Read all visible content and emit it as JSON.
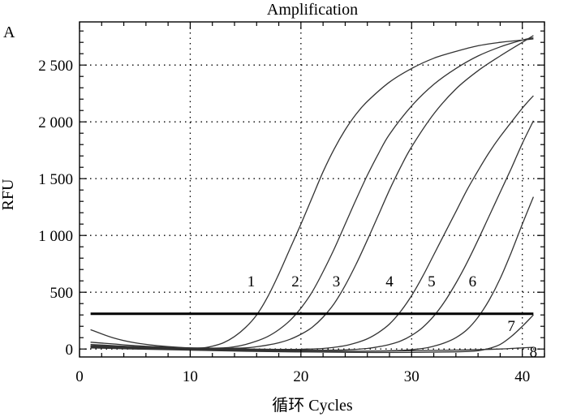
{
  "chart_data": {
    "type": "line",
    "title": "Amplification",
    "panel_label": "A",
    "xlabel": "循环  Cycles",
    "ylabel": "RFU",
    "xlim": [
      0,
      42
    ],
    "ylim": [
      -70,
      2880
    ],
    "x_ticks": [
      0,
      10,
      20,
      30,
      40
    ],
    "x_tick_labels": [
      "0",
      "10",
      "20",
      "30",
      "40"
    ],
    "y_ticks": [
      0,
      500,
      1000,
      1500,
      2000,
      2500
    ],
    "y_tick_labels": [
      "0",
      "500",
      "1 000",
      "1 500",
      "2 000",
      "2 500"
    ],
    "grid": true,
    "threshold": 310,
    "series": [
      {
        "name": "1",
        "x": [
          1,
          3,
          5,
          7,
          9,
          11,
          12,
          13,
          14,
          15,
          16,
          17,
          18,
          19,
          20,
          21,
          22,
          23,
          24,
          25,
          26,
          28,
          30,
          32,
          34,
          36,
          38,
          40,
          41
        ],
        "y": [
          170,
          100,
          55,
          30,
          15,
          10,
          25,
          55,
          110,
          190,
          300,
          460,
          660,
          880,
          1100,
          1330,
          1560,
          1760,
          1930,
          2070,
          2180,
          2350,
          2470,
          2560,
          2620,
          2670,
          2700,
          2720,
          2730
        ]
      },
      {
        "name": "2",
        "x": [
          1,
          3,
          5,
          7,
          9,
          11,
          13,
          14,
          15,
          16,
          17,
          18,
          19,
          20,
          21,
          22,
          23,
          24,
          25,
          26,
          27,
          28,
          30,
          32,
          34,
          36,
          38,
          40,
          41
        ],
        "y": [
          60,
          45,
          30,
          20,
          12,
          8,
          10,
          20,
          40,
          70,
          110,
          170,
          250,
          360,
          500,
          680,
          880,
          1100,
          1320,
          1530,
          1720,
          1890,
          2140,
          2330,
          2470,
          2580,
          2660,
          2720,
          2740
        ]
      },
      {
        "name": "3",
        "x": [
          1,
          3,
          5,
          7,
          9,
          11,
          13,
          15,
          16,
          17,
          18,
          19,
          20,
          21,
          22,
          23,
          24,
          25,
          26,
          27,
          28,
          29,
          30,
          32,
          34,
          36,
          38,
          40,
          41
        ],
        "y": [
          40,
          30,
          20,
          12,
          8,
          5,
          6,
          10,
          20,
          35,
          55,
          85,
          130,
          190,
          280,
          400,
          560,
          750,
          960,
          1180,
          1400,
          1600,
          1780,
          2070,
          2290,
          2450,
          2580,
          2700,
          2760
        ]
      },
      {
        "name": "4",
        "x": [
          1,
          5,
          10,
          15,
          18,
          20,
          22,
          23,
          24,
          25,
          26,
          27,
          28,
          29,
          30,
          31,
          32,
          33,
          34,
          35,
          36,
          37,
          38,
          40,
          41
        ],
        "y": [
          30,
          20,
          8,
          0,
          -3,
          -2,
          5,
          15,
          30,
          55,
          90,
          145,
          220,
          330,
          470,
          640,
          830,
          1020,
          1210,
          1400,
          1570,
          1730,
          1870,
          2120,
          2230
        ]
      },
      {
        "name": "5",
        "x": [
          1,
          5,
          10,
          15,
          20,
          24,
          26,
          27,
          28,
          29,
          30,
          31,
          32,
          33,
          34,
          35,
          36,
          37,
          38,
          39,
          40,
          41
        ],
        "y": [
          25,
          15,
          5,
          -5,
          -10,
          -8,
          5,
          20,
          40,
          70,
          120,
          190,
          290,
          420,
          580,
          760,
          960,
          1170,
          1380,
          1590,
          1810,
          2010
        ]
      },
      {
        "name": "6",
        "x": [
          1,
          5,
          10,
          15,
          20,
          25,
          29,
          31,
          32,
          33,
          34,
          35,
          36,
          37,
          38,
          39,
          40,
          41
        ],
        "y": [
          20,
          10,
          0,
          -10,
          -18,
          -20,
          -12,
          5,
          25,
          55,
          100,
          170,
          280,
          430,
          620,
          850,
          1100,
          1340
        ]
      },
      {
        "name": "7",
        "x": [
          1,
          5,
          10,
          15,
          20,
          25,
          30,
          34,
          36,
          37,
          38,
          39,
          40,
          41
        ],
        "y": [
          15,
          5,
          -5,
          -15,
          -25,
          -30,
          -30,
          -25,
          -15,
          5,
          40,
          110,
          200,
          300
        ]
      },
      {
        "name": "8",
        "x": [
          1,
          5,
          10,
          15,
          20,
          25,
          30,
          35,
          38,
          40,
          41
        ],
        "y": [
          10,
          0,
          -10,
          -20,
          -25,
          -20,
          -15,
          -8,
          0,
          10,
          15
        ]
      }
    ],
    "label_positions": [
      {
        "text": "1",
        "x": 15.5,
        "y": 600
      },
      {
        "text": "2",
        "x": 19.5,
        "y": 600
      },
      {
        "text": "3",
        "x": 23.2,
        "y": 600
      },
      {
        "text": "4",
        "x": 28.0,
        "y": 600
      },
      {
        "text": "5",
        "x": 31.8,
        "y": 600
      },
      {
        "text": "6",
        "x": 35.5,
        "y": 600
      },
      {
        "text": "7",
        "x": 39.0,
        "y": 210
      },
      {
        "text": "8",
        "x": 41.0,
        "y": -20
      }
    ]
  }
}
